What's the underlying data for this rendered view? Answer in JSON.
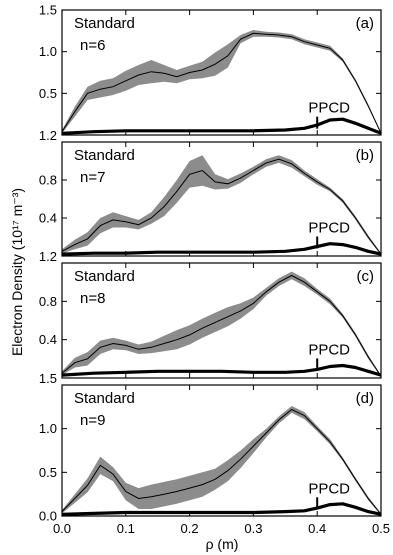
{
  "chart_data": {
    "type": "line",
    "xlabel": "ρ (m)",
    "ylabel": "Electron Density (10¹⁷ m⁻³)",
    "xlim": [
      0.0,
      0.5
    ],
    "x_ticks": [
      "0.0",
      "0.1",
      "0.2",
      "0.3",
      "0.4",
      "0.5"
    ],
    "panels": [
      {
        "id": "(a)",
        "standard_label": "Standard",
        "n_label": "n=6",
        "ppcd_label": "PPCD",
        "ylim": [
          0,
          1.5
        ],
        "y_ticks": [
          {
            "v": 0.5,
            "t": "0.5"
          },
          {
            "v": 1.0,
            "t": "1.0"
          },
          {
            "v": 1.5,
            "t": "1.5"
          }
        ],
        "bottom_tick_label": "1.2",
        "standard": {
          "x": [
            0.0,
            0.02,
            0.04,
            0.06,
            0.08,
            0.1,
            0.12,
            0.14,
            0.16,
            0.18,
            0.2,
            0.22,
            0.24,
            0.26,
            0.28,
            0.3,
            0.32,
            0.34,
            0.36,
            0.38,
            0.4,
            0.42,
            0.44,
            0.46,
            0.48,
            0.5
          ],
          "y": [
            0.04,
            0.28,
            0.5,
            0.55,
            0.58,
            0.65,
            0.72,
            0.76,
            0.74,
            0.7,
            0.75,
            0.78,
            0.85,
            0.95,
            1.15,
            1.22,
            1.21,
            1.2,
            1.18,
            1.12,
            1.08,
            1.04,
            0.9,
            0.65,
            0.35,
            0.02
          ],
          "band": [
            0.02,
            0.06,
            0.08,
            0.1,
            0.1,
            0.12,
            0.12,
            0.14,
            0.1,
            0.08,
            0.08,
            0.1,
            0.14,
            0.14,
            0.05,
            0.04,
            0.03,
            0.03,
            0.03,
            0.03,
            0.03,
            0.03,
            0.02,
            0.02,
            0.02,
            0.01
          ]
        },
        "ppcd": {
          "x": [
            0.0,
            0.05,
            0.1,
            0.15,
            0.2,
            0.25,
            0.3,
            0.35,
            0.38,
            0.4,
            0.42,
            0.44,
            0.46,
            0.48,
            0.5
          ],
          "y": [
            0.02,
            0.04,
            0.05,
            0.05,
            0.05,
            0.05,
            0.05,
            0.06,
            0.08,
            0.12,
            0.18,
            0.19,
            0.14,
            0.08,
            0.02
          ]
        }
      },
      {
        "id": "(b)",
        "standard_label": "Standard",
        "n_label": "n=7",
        "ppcd_label": "PPCD",
        "ylim": [
          0,
          1.2
        ],
        "y_ticks": [
          {
            "v": 0.4,
            "t": "0.4"
          },
          {
            "v": 0.8,
            "t": "0.8"
          }
        ],
        "bottom_tick_label": "1.2",
        "standard": {
          "x": [
            0.0,
            0.02,
            0.04,
            0.06,
            0.08,
            0.1,
            0.12,
            0.14,
            0.16,
            0.18,
            0.2,
            0.22,
            0.24,
            0.26,
            0.28,
            0.3,
            0.32,
            0.34,
            0.36,
            0.38,
            0.4,
            0.42,
            0.44,
            0.46,
            0.48,
            0.5
          ],
          "y": [
            0.05,
            0.12,
            0.18,
            0.32,
            0.38,
            0.36,
            0.33,
            0.4,
            0.52,
            0.68,
            0.86,
            0.9,
            0.78,
            0.76,
            0.82,
            0.9,
            0.98,
            1.02,
            0.97,
            0.87,
            0.78,
            0.7,
            0.58,
            0.4,
            0.2,
            0.02
          ],
          "band": [
            0.02,
            0.05,
            0.07,
            0.08,
            0.08,
            0.06,
            0.05,
            0.06,
            0.1,
            0.12,
            0.14,
            0.16,
            0.08,
            0.05,
            0.05,
            0.04,
            0.04,
            0.04,
            0.04,
            0.03,
            0.03,
            0.02,
            0.02,
            0.02,
            0.02,
            0.01
          ]
        },
        "ppcd": {
          "x": [
            0.0,
            0.05,
            0.1,
            0.15,
            0.2,
            0.25,
            0.3,
            0.35,
            0.38,
            0.4,
            0.42,
            0.44,
            0.46,
            0.48,
            0.5
          ],
          "y": [
            0.02,
            0.03,
            0.03,
            0.04,
            0.04,
            0.04,
            0.04,
            0.05,
            0.07,
            0.1,
            0.13,
            0.12,
            0.09,
            0.05,
            0.02
          ]
        }
      },
      {
        "id": "(c)",
        "standard_label": "Standard",
        "n_label": "n=8",
        "ppcd_label": "PPCD",
        "ylim": [
          0,
          1.2
        ],
        "y_ticks": [
          {
            "v": 0.4,
            "t": "0.4"
          },
          {
            "v": 0.8,
            "t": "0.8"
          }
        ],
        "bottom_tick_label": "1.5",
        "standard": {
          "x": [
            0.0,
            0.02,
            0.04,
            0.06,
            0.08,
            0.1,
            0.12,
            0.14,
            0.16,
            0.18,
            0.2,
            0.22,
            0.24,
            0.26,
            0.28,
            0.3,
            0.32,
            0.34,
            0.36,
            0.38,
            0.4,
            0.42,
            0.44,
            0.46,
            0.48,
            0.5
          ],
          "y": [
            0.05,
            0.16,
            0.2,
            0.32,
            0.36,
            0.34,
            0.3,
            0.32,
            0.36,
            0.4,
            0.45,
            0.52,
            0.58,
            0.64,
            0.7,
            0.78,
            0.9,
            1.0,
            1.07,
            1.0,
            0.9,
            0.8,
            0.65,
            0.45,
            0.22,
            0.02
          ],
          "band": [
            0.02,
            0.05,
            0.07,
            0.07,
            0.06,
            0.05,
            0.05,
            0.06,
            0.08,
            0.1,
            0.1,
            0.1,
            0.1,
            0.1,
            0.08,
            0.06,
            0.04,
            0.04,
            0.04,
            0.04,
            0.03,
            0.03,
            0.02,
            0.02,
            0.02,
            0.01
          ]
        },
        "ppcd": {
          "x": [
            0.0,
            0.05,
            0.1,
            0.15,
            0.2,
            0.25,
            0.3,
            0.35,
            0.38,
            0.4,
            0.42,
            0.44,
            0.46,
            0.48,
            0.5
          ],
          "y": [
            0.03,
            0.05,
            0.06,
            0.07,
            0.07,
            0.07,
            0.06,
            0.06,
            0.07,
            0.09,
            0.12,
            0.13,
            0.11,
            0.07,
            0.03
          ]
        }
      },
      {
        "id": "(d)",
        "standard_label": "Standard",
        "n_label": "n=9",
        "ppcd_label": "PPCD",
        "ylim": [
          0,
          1.5
        ],
        "y_ticks": [
          {
            "v": 0.0,
            "t": "0.0"
          },
          {
            "v": 0.5,
            "t": "0.5"
          },
          {
            "v": 1.0,
            "t": "1.0"
          }
        ],
        "bottom_tick_label": "",
        "standard": {
          "x": [
            0.0,
            0.02,
            0.04,
            0.06,
            0.08,
            0.1,
            0.12,
            0.14,
            0.16,
            0.18,
            0.2,
            0.22,
            0.24,
            0.26,
            0.28,
            0.3,
            0.32,
            0.34,
            0.36,
            0.38,
            0.4,
            0.42,
            0.44,
            0.46,
            0.48,
            0.5
          ],
          "y": [
            0.05,
            0.2,
            0.35,
            0.58,
            0.48,
            0.28,
            0.2,
            0.22,
            0.25,
            0.28,
            0.32,
            0.36,
            0.42,
            0.52,
            0.65,
            0.8,
            0.95,
            1.1,
            1.22,
            1.15,
            1.0,
            0.85,
            0.65,
            0.42,
            0.2,
            0.02
          ],
          "band": [
            0.02,
            0.05,
            0.08,
            0.1,
            0.08,
            0.1,
            0.12,
            0.14,
            0.14,
            0.14,
            0.14,
            0.14,
            0.12,
            0.12,
            0.1,
            0.08,
            0.05,
            0.04,
            0.04,
            0.04,
            0.03,
            0.03,
            0.02,
            0.02,
            0.02,
            0.01
          ]
        },
        "ppcd": {
          "x": [
            0.0,
            0.05,
            0.1,
            0.15,
            0.2,
            0.25,
            0.3,
            0.35,
            0.38,
            0.4,
            0.42,
            0.44,
            0.46,
            0.48,
            0.5
          ],
          "y": [
            0.02,
            0.03,
            0.04,
            0.04,
            0.04,
            0.04,
            0.04,
            0.05,
            0.06,
            0.09,
            0.13,
            0.14,
            0.1,
            0.05,
            0.02
          ]
        }
      }
    ]
  }
}
